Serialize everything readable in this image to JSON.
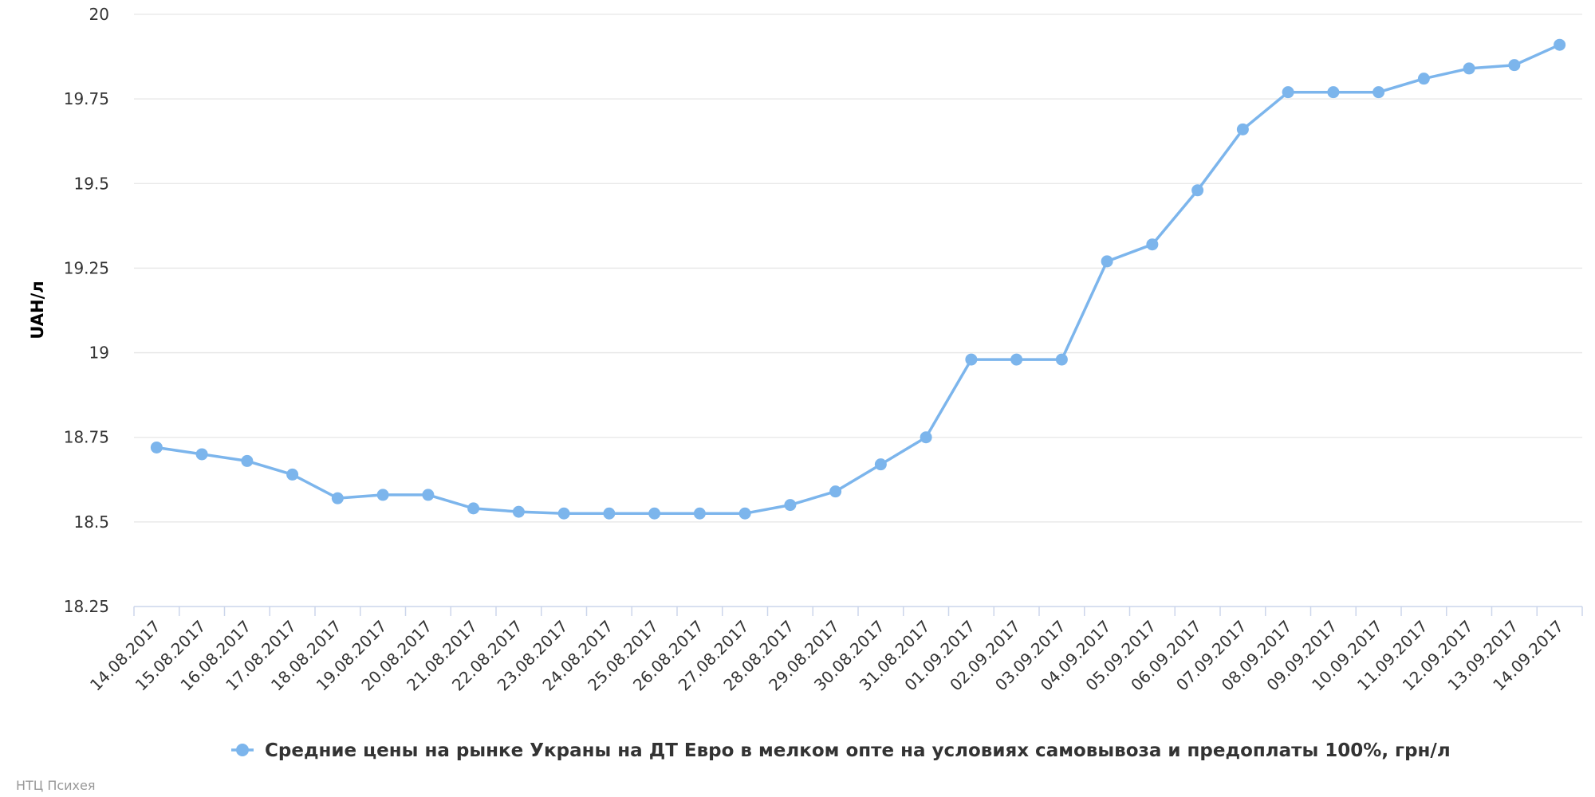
{
  "chart_data": {
    "type": "line",
    "title": "",
    "xlabel": "",
    "ylabel": "UAH/л",
    "ylim": [
      18.25,
      20
    ],
    "yticks": [
      "18.25",
      "18.5",
      "18.75",
      "19",
      "19.25",
      "19.5",
      "19.75",
      "20"
    ],
    "grid": true,
    "legend_position": "bottom-center",
    "categories": [
      "14.08.2017",
      "15.08.2017",
      "16.08.2017",
      "17.08.2017",
      "18.08.2017",
      "19.08.2017",
      "20.08.2017",
      "21.08.2017",
      "22.08.2017",
      "23.08.2017",
      "24.08.2017",
      "25.08.2017",
      "26.08.2017",
      "27.08.2017",
      "28.08.2017",
      "29.08.2017",
      "30.08.2017",
      "31.08.2017",
      "01.09.2017",
      "02.09.2017",
      "03.09.2017",
      "04.09.2017",
      "05.09.2017",
      "06.09.2017",
      "07.09.2017",
      "08.09.2017",
      "09.09.2017",
      "10.09.2017",
      "11.09.2017",
      "12.09.2017",
      "13.09.2017",
      "14.09.2017"
    ],
    "series": [
      {
        "name": "Средние цены на рынке Украны на ДТ Евро в мелком опте на условиях самовывоза и предоплаты 100%, грн/л",
        "color": "#7cb5ec",
        "values": [
          18.72,
          18.7,
          18.68,
          18.64,
          18.57,
          18.58,
          18.58,
          18.54,
          18.53,
          18.525,
          18.525,
          18.525,
          18.525,
          18.525,
          18.55,
          18.59,
          18.67,
          18.75,
          18.98,
          18.98,
          18.98,
          19.27,
          19.32,
          19.48,
          19.66,
          19.77,
          19.77,
          19.77,
          19.81,
          19.84,
          19.85,
          19.91
        ]
      }
    ]
  },
  "credits": "НТЦ Психея"
}
